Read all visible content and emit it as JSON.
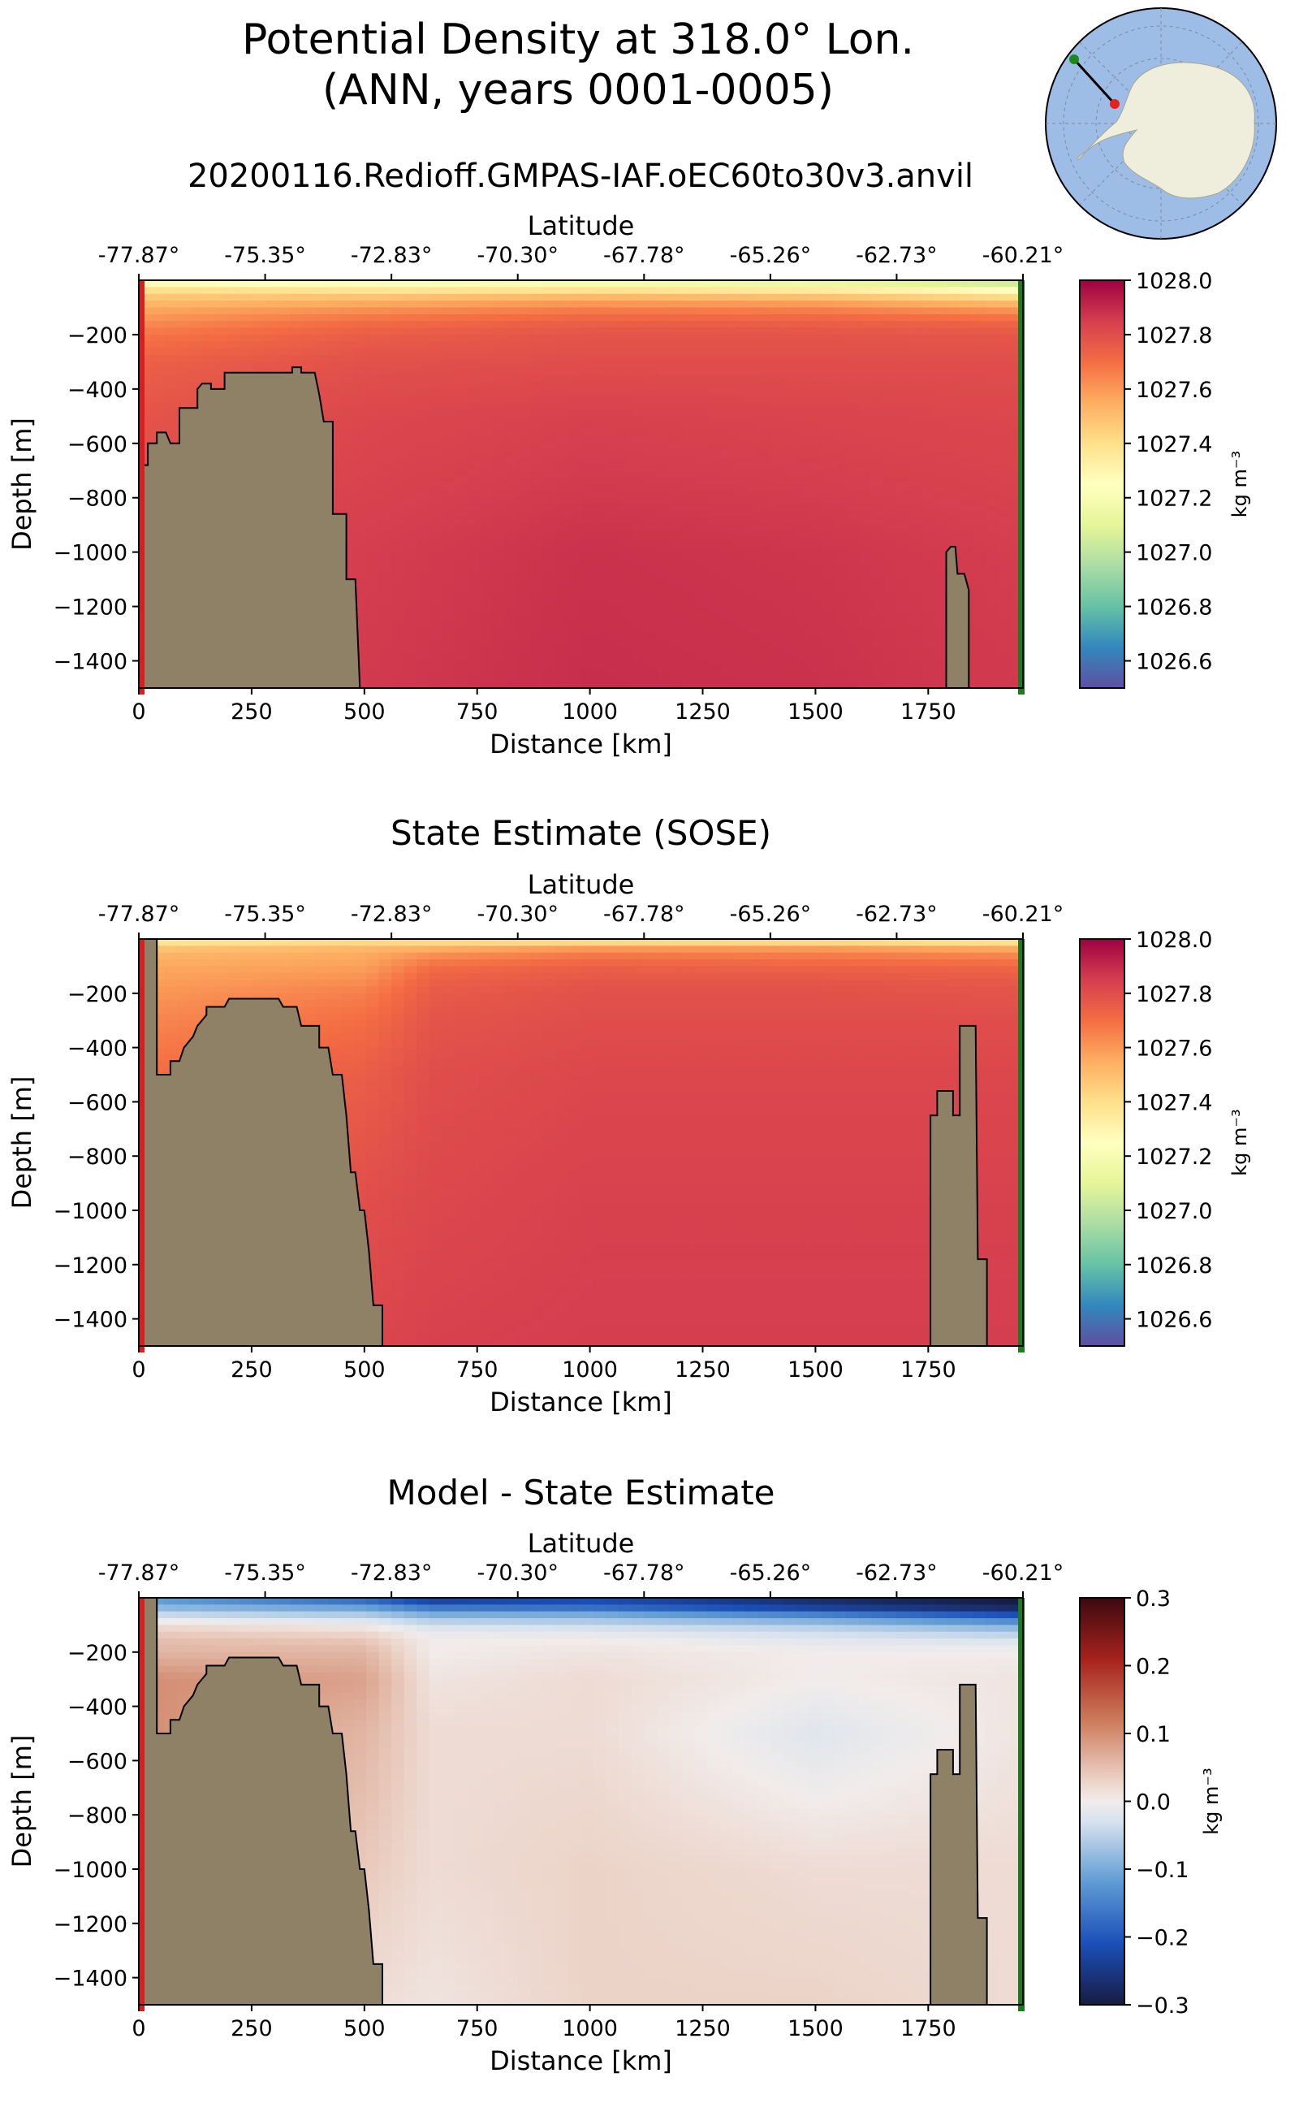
{
  "figure": {
    "title_line1": "Potential Density at 318.0° Lon.",
    "title_line2": "(ANN, years 0001-0005)",
    "subtitle": "20200116.Redioff.GMPAS-IAF.oEC60to30v3.anvil"
  },
  "colors": {
    "land": "#8f8166",
    "start_marker": "#d62020",
    "end_marker": "#1f7a1f",
    "ocean_blue": "#9dbde6",
    "continent": "#efeedd"
  },
  "inset_map": {
    "description_icon": "south-polar-map-icon"
  },
  "chart_data": [
    {
      "id": "model",
      "type": "heatmap",
      "title": "",
      "xlabel": "Distance [km]",
      "ylabel": "Depth [m]",
      "top_axis_label": "Latitude",
      "xlim": [
        0,
        1960
      ],
      "ylim": [
        -1500,
        0
      ],
      "x_ticks": [
        0,
        250,
        500,
        750,
        1000,
        1250,
        1500,
        1750
      ],
      "y_ticks": [
        -200,
        -400,
        -600,
        -800,
        -1000,
        -1200,
        -1400
      ],
      "top_ticks": [
        "-77.87°",
        "-75.35°",
        "-72.83°",
        "-70.30°",
        "-67.78°",
        "-65.26°",
        "-62.73°",
        "-60.21°"
      ],
      "colorbar": {
        "label": "kg m⁻³",
        "min": 1026.5,
        "max": 1028.0,
        "ticks": [
          "1028.0",
          "1027.8",
          "1027.6",
          "1027.4",
          "1027.2",
          "1027.0",
          "1026.8",
          "1026.6"
        ],
        "tick_values": [
          1028.0,
          1027.8,
          1027.6,
          1027.4,
          1027.2,
          1027.0,
          1026.8,
          1026.6
        ],
        "colormap": "Spectral_r"
      },
      "field": {
        "depths": [
          0,
          25,
          50,
          100,
          150,
          200,
          300,
          500,
          1000,
          1500
        ],
        "columns": [
          {
            "x": 0,
            "values": [
              1027.2,
              1027.35,
              1027.45,
              1027.55,
              1027.62,
              1027.68,
              1027.74,
              1027.78,
              1027.82,
              1027.84
            ]
          },
          {
            "x": 500,
            "values": [
              1027.15,
              1027.3,
              1027.45,
              1027.6,
              1027.7,
              1027.75,
              1027.79,
              1027.82,
              1027.85,
              1027.86
            ]
          },
          {
            "x": 1000,
            "values": [
              1027.1,
              1027.3,
              1027.48,
              1027.65,
              1027.74,
              1027.78,
              1027.8,
              1027.84,
              1027.88,
              1027.89
            ]
          },
          {
            "x": 1500,
            "values": [
              1027.05,
              1027.25,
              1027.45,
              1027.64,
              1027.74,
              1027.78,
              1027.8,
              1027.83,
              1027.87,
              1027.88
            ]
          },
          {
            "x": 1960,
            "values": [
              1026.95,
              1027.15,
              1027.35,
              1027.58,
              1027.72,
              1027.77,
              1027.8,
              1027.82,
              1027.85,
              1027.86
            ]
          }
        ]
      },
      "bathymetry": [
        [
          0,
          -680
        ],
        [
          20,
          -680
        ],
        [
          20,
          -600
        ],
        [
          40,
          -600
        ],
        [
          40,
          -560
        ],
        [
          60,
          -560
        ],
        [
          70,
          -600
        ],
        [
          90,
          -600
        ],
        [
          90,
          -470
        ],
        [
          130,
          -470
        ],
        [
          130,
          -400
        ],
        [
          140,
          -380
        ],
        [
          160,
          -380
        ],
        [
          160,
          -400
        ],
        [
          190,
          -400
        ],
        [
          190,
          -340
        ],
        [
          340,
          -340
        ],
        [
          340,
          -320
        ],
        [
          360,
          -320
        ],
        [
          360,
          -340
        ],
        [
          390,
          -340
        ],
        [
          400,
          -420
        ],
        [
          410,
          -520
        ],
        [
          430,
          -520
        ],
        [
          430,
          -860
        ],
        [
          460,
          -860
        ],
        [
          460,
          -1100
        ],
        [
          480,
          -1100
        ],
        [
          490,
          -1500
        ],
        [
          0,
          -1500
        ]
      ],
      "bathymetry_secondary": [
        [
          1790,
          -1500
        ],
        [
          1790,
          -1000
        ],
        [
          1800,
          -980
        ],
        [
          1810,
          -980
        ],
        [
          1815,
          -1080
        ],
        [
          1830,
          -1080
        ],
        [
          1840,
          -1140
        ],
        [
          1840,
          -1500
        ]
      ]
    },
    {
      "id": "sose",
      "type": "heatmap",
      "title": "State Estimate (SOSE)",
      "xlabel": "Distance [km]",
      "ylabel": "Depth [m]",
      "top_axis_label": "Latitude",
      "xlim": [
        0,
        1960
      ],
      "ylim": [
        -1500,
        0
      ],
      "x_ticks": [
        0,
        250,
        500,
        750,
        1000,
        1250,
        1500,
        1750
      ],
      "y_ticks": [
        -200,
        -400,
        -600,
        -800,
        -1000,
        -1200,
        -1400
      ],
      "top_ticks": [
        "-77.87°",
        "-75.35°",
        "-72.83°",
        "-70.30°",
        "-67.78°",
        "-65.26°",
        "-62.73°",
        "-60.21°"
      ],
      "colorbar": {
        "label": "kg m⁻³",
        "min": 1026.5,
        "max": 1028.0,
        "ticks": [
          "1028.0",
          "1027.8",
          "1027.6",
          "1027.4",
          "1027.2",
          "1027.0",
          "1026.8",
          "1026.6"
        ],
        "tick_values": [
          1028.0,
          1027.8,
          1027.6,
          1027.4,
          1027.2,
          1027.0,
          1026.8,
          1026.6
        ],
        "colormap": "Spectral_r"
      },
      "field": {
        "depths": [
          0,
          25,
          50,
          100,
          150,
          200,
          300,
          500,
          1000,
          1500
        ],
        "columns": [
          {
            "x": 0,
            "values": [
              1027.3,
              1027.45,
              1027.52,
              1027.56,
              1027.58,
              1027.6,
              1027.64,
              1027.7,
              1027.76,
              1027.8
            ]
          },
          {
            "x": 500,
            "values": [
              1027.35,
              1027.5,
              1027.55,
              1027.58,
              1027.62,
              1027.66,
              1027.7,
              1027.75,
              1027.8,
              1027.82
            ]
          },
          {
            "x": 650,
            "values": [
              1027.35,
              1027.5,
              1027.6,
              1027.7,
              1027.74,
              1027.76,
              1027.78,
              1027.8,
              1027.82,
              1027.84
            ]
          },
          {
            "x": 1000,
            "values": [
              1027.3,
              1027.55,
              1027.66,
              1027.74,
              1027.77,
              1027.79,
              1027.8,
              1027.82,
              1027.84,
              1027.85
            ]
          },
          {
            "x": 1500,
            "values": [
              1027.3,
              1027.55,
              1027.65,
              1027.73,
              1027.77,
              1027.79,
              1027.8,
              1027.82,
              1027.84,
              1027.85
            ]
          },
          {
            "x": 1960,
            "values": [
              1027.3,
              1027.5,
              1027.62,
              1027.72,
              1027.76,
              1027.78,
              1027.8,
              1027.82,
              1027.84,
              1027.85
            ]
          }
        ]
      },
      "bathymetry": [
        [
          0,
          0
        ],
        [
          40,
          0
        ],
        [
          40,
          -500
        ],
        [
          70,
          -500
        ],
        [
          70,
          -450
        ],
        [
          90,
          -450
        ],
        [
          100,
          -400
        ],
        [
          120,
          -360
        ],
        [
          130,
          -320
        ],
        [
          150,
          -280
        ],
        [
          150,
          -250
        ],
        [
          190,
          -250
        ],
        [
          200,
          -220
        ],
        [
          310,
          -220
        ],
        [
          320,
          -250
        ],
        [
          350,
          -250
        ],
        [
          360,
          -320
        ],
        [
          400,
          -320
        ],
        [
          400,
          -400
        ],
        [
          420,
          -400
        ],
        [
          430,
          -500
        ],
        [
          450,
          -500
        ],
        [
          460,
          -650
        ],
        [
          470,
          -860
        ],
        [
          480,
          -860
        ],
        [
          490,
          -1000
        ],
        [
          500,
          -1000
        ],
        [
          510,
          -1150
        ],
        [
          520,
          -1350
        ],
        [
          540,
          -1350
        ],
        [
          540,
          -1500
        ],
        [
          0,
          -1500
        ]
      ],
      "bathymetry_secondary": [
        [
          1755,
          -1500
        ],
        [
          1755,
          -650
        ],
        [
          1770,
          -650
        ],
        [
          1770,
          -560
        ],
        [
          1805,
          -560
        ],
        [
          1805,
          -650
        ],
        [
          1820,
          -650
        ],
        [
          1820,
          -320
        ],
        [
          1855,
          -320
        ],
        [
          1860,
          -1180
        ],
        [
          1880,
          -1180
        ],
        [
          1880,
          -1500
        ]
      ]
    },
    {
      "id": "diff",
      "type": "heatmap",
      "title": "Model - State Estimate",
      "xlabel": "Distance [km]",
      "ylabel": "Depth [m]",
      "top_axis_label": "Latitude",
      "xlim": [
        0,
        1960
      ],
      "ylim": [
        -1500,
        0
      ],
      "x_ticks": [
        0,
        250,
        500,
        750,
        1000,
        1250,
        1500,
        1750
      ],
      "y_ticks": [
        -200,
        -400,
        -600,
        -800,
        -1000,
        -1200,
        -1400
      ],
      "top_ticks": [
        "-77.87°",
        "-75.35°",
        "-72.83°",
        "-70.30°",
        "-67.78°",
        "-65.26°",
        "-62.73°",
        "-60.21°"
      ],
      "colorbar": {
        "label": "kg m⁻³",
        "min": -0.3,
        "max": 0.3,
        "ticks": [
          "0.3",
          "0.2",
          "0.1",
          "0.0",
          "−0.1",
          "−0.2",
          "−0.3"
        ],
        "tick_values": [
          0.3,
          0.2,
          0.1,
          0.0,
          -0.1,
          -0.2,
          -0.3
        ],
        "colormap": "balance"
      },
      "field": {
        "depths": [
          0,
          25,
          50,
          100,
          150,
          200,
          300,
          500,
          1000,
          1500
        ],
        "columns": [
          {
            "x": 0,
            "values": [
              -0.12,
              -0.1,
              -0.06,
              0.02,
              0.05,
              0.06,
              0.1,
              0.1,
              0.06,
              0.04
            ]
          },
          {
            "x": 500,
            "values": [
              -0.2,
              -0.14,
              -0.08,
              0.0,
              0.04,
              0.06,
              0.08,
              0.06,
              0.04,
              0.02
            ]
          },
          {
            "x": 650,
            "values": [
              -0.25,
              -0.2,
              -0.12,
              -0.03,
              0.0,
              0.0,
              0.01,
              0.02,
              0.02,
              0.01
            ]
          },
          {
            "x": 1000,
            "values": [
              -0.2,
              -0.22,
              -0.12,
              -0.04,
              0.0,
              0.01,
              0.02,
              0.02,
              0.03,
              0.03
            ]
          },
          {
            "x": 1500,
            "values": [
              -0.25,
              -0.28,
              -0.18,
              -0.06,
              -0.02,
              0.0,
              0.0,
              -0.02,
              0.02,
              0.03
            ]
          },
          {
            "x": 1960,
            "values": [
              -0.3,
              -0.3,
              -0.25,
              -0.1,
              -0.03,
              0.0,
              0.01,
              0.01,
              0.02,
              0.02
            ]
          }
        ]
      },
      "bathymetry": [
        [
          0,
          0
        ],
        [
          40,
          0
        ],
        [
          40,
          -500
        ],
        [
          70,
          -500
        ],
        [
          70,
          -450
        ],
        [
          90,
          -450
        ],
        [
          100,
          -400
        ],
        [
          120,
          -360
        ],
        [
          130,
          -320
        ],
        [
          150,
          -280
        ],
        [
          150,
          -250
        ],
        [
          190,
          -250
        ],
        [
          200,
          -220
        ],
        [
          310,
          -220
        ],
        [
          320,
          -250
        ],
        [
          350,
          -250
        ],
        [
          360,
          -320
        ],
        [
          400,
          -320
        ],
        [
          400,
          -400
        ],
        [
          420,
          -400
        ],
        [
          430,
          -500
        ],
        [
          450,
          -500
        ],
        [
          460,
          -650
        ],
        [
          470,
          -860
        ],
        [
          480,
          -860
        ],
        [
          490,
          -1000
        ],
        [
          500,
          -1000
        ],
        [
          510,
          -1150
        ],
        [
          520,
          -1350
        ],
        [
          540,
          -1350
        ],
        [
          540,
          -1500
        ],
        [
          0,
          -1500
        ]
      ],
      "bathymetry_secondary": [
        [
          1755,
          -1500
        ],
        [
          1755,
          -650
        ],
        [
          1770,
          -650
        ],
        [
          1770,
          -560
        ],
        [
          1805,
          -560
        ],
        [
          1805,
          -650
        ],
        [
          1820,
          -650
        ],
        [
          1820,
          -320
        ],
        [
          1855,
          -320
        ],
        [
          1860,
          -1180
        ],
        [
          1880,
          -1180
        ],
        [
          1880,
          -1500
        ]
      ]
    }
  ]
}
